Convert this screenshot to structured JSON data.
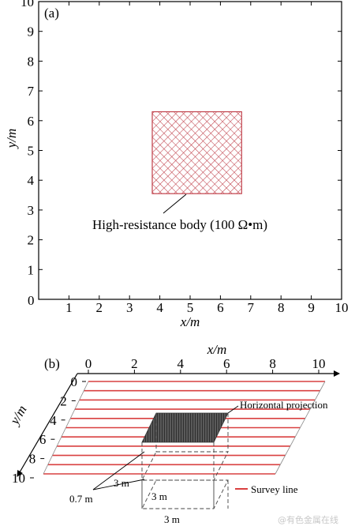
{
  "panel_a": {
    "label": "(a)",
    "xlabel": "x/m",
    "ylabel": "y/m",
    "origin": "0",
    "xticks": [
      "1",
      "2",
      "3",
      "4",
      "5",
      "6",
      "7",
      "8",
      "9",
      "10"
    ],
    "yticks": [
      "1",
      "2",
      "3",
      "4",
      "5",
      "6",
      "7",
      "8",
      "9",
      "10"
    ],
    "xlim": [
      0,
      10
    ],
    "ylim": [
      0,
      10
    ],
    "body_rect": {
      "x0": 3.75,
      "x1": 6.7,
      "y0": 3.55,
      "y1": 6.3
    },
    "annotation": "High-resistance body (100 Ω•m)",
    "colors": {
      "hatch": "#c0404a",
      "axis": "#000000"
    }
  },
  "panel_b": {
    "label": "(b)",
    "xlabel": "x/m",
    "ylabel": "y/m",
    "xticks": [
      "0",
      "2",
      "4",
      "6",
      "8",
      "10"
    ],
    "yticks": [
      "0",
      "2",
      "4",
      "6",
      "8",
      "10"
    ],
    "survey_line_count": 11,
    "projection_label": "Horizontal projection",
    "depth_label": "0.7 m",
    "dim_labels": [
      "3 m",
      "3 m",
      "3 m"
    ],
    "legend_label": "Survey line",
    "colors": {
      "survey_line": "#d94040",
      "projection": "#555555"
    }
  },
  "watermark": "@有色金属在线"
}
